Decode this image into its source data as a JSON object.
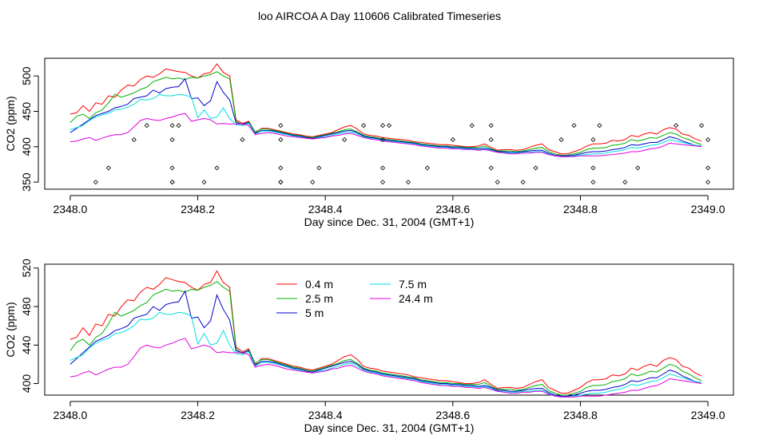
{
  "title": "loo AIRCOA A  Day 110606  Calibrated Timeseries",
  "chart_data": [
    {
      "type": "line",
      "xlabel": "Day since Dec. 31, 2004 (GMT+1)",
      "ylabel": "CO2 (ppm)",
      "xlim": [
        2347.96,
        2349.04
      ],
      "ylim": [
        340,
        525
      ],
      "xticks": [
        2348.0,
        2348.2,
        2348.4,
        2348.6,
        2348.8,
        2349.0
      ],
      "xtick_labels": [
        "2348.0",
        "2348.2",
        "2348.4",
        "2348.6",
        "2348.8",
        "2349.0"
      ],
      "yticks": [
        350,
        400,
        450,
        500
      ],
      "ytick_labels": [
        "350",
        "400",
        "450",
        "500"
      ],
      "legend": false,
      "x": [
        2348.0,
        2348.01,
        2348.02,
        2348.03,
        2348.04,
        2348.05,
        2348.06,
        2348.07,
        2348.08,
        2348.09,
        2348.1,
        2348.11,
        2348.12,
        2348.13,
        2348.14,
        2348.15,
        2348.16,
        2348.17,
        2348.18,
        2348.19,
        2348.2,
        2348.21,
        2348.22,
        2348.23,
        2348.24,
        2348.25,
        2348.26,
        2348.27,
        2348.28,
        2348.29,
        2348.3,
        2348.31,
        2348.32,
        2348.33,
        2348.34,
        2348.35,
        2348.36,
        2348.37,
        2348.38,
        2348.39,
        2348.4,
        2348.41,
        2348.42,
        2348.43,
        2348.44,
        2348.45,
        2348.46,
        2348.47,
        2348.48,
        2348.49,
        2348.5,
        2348.51,
        2348.52,
        2348.53,
        2348.54,
        2348.55,
        2348.56,
        2348.57,
        2348.58,
        2348.59,
        2348.6,
        2348.61,
        2348.62,
        2348.63,
        2348.64,
        2348.65,
        2348.66,
        2348.67,
        2348.68,
        2348.69,
        2348.7,
        2348.71,
        2348.72,
        2348.73,
        2348.74,
        2348.75,
        2348.76,
        2348.77,
        2348.78,
        2348.79,
        2348.8,
        2348.81,
        2348.82,
        2348.83,
        2348.84,
        2348.85,
        2348.86,
        2348.87,
        2348.88,
        2348.89,
        2348.9,
        2348.91,
        2348.92,
        2348.93,
        2348.94,
        2348.95,
        2348.96,
        2348.97,
        2348.98,
        2348.99
      ],
      "series": [
        {
          "color": "#ff0000",
          "values": [
            446,
            448,
            458,
            450,
            462,
            460,
            472,
            470,
            480,
            487,
            486,
            495,
            500,
            498,
            503,
            510,
            508,
            506,
            505,
            500,
            497,
            503,
            505,
            517,
            505,
            500,
            438,
            433,
            436,
            420,
            426,
            426,
            424,
            422,
            420,
            418,
            417,
            415,
            414,
            416,
            418,
            420,
            424,
            428,
            430,
            425,
            418,
            416,
            415,
            413,
            412,
            411,
            410,
            409,
            407,
            406,
            405,
            404,
            403,
            403,
            402,
            401,
            400,
            400,
            401,
            404,
            399,
            395,
            396,
            396,
            395,
            396,
            399,
            402,
            404,
            396,
            393,
            390,
            390,
            393,
            396,
            401,
            404,
            404,
            405,
            409,
            408,
            410,
            416,
            414,
            418,
            420,
            418,
            424,
            427,
            425,
            418,
            416,
            411,
            408
          ]
        },
        {
          "color": "#00b000",
          "values": [
            434,
            443,
            446,
            440,
            448,
            452,
            462,
            474,
            470,
            473,
            476,
            481,
            484,
            492,
            495,
            498,
            496,
            497,
            495,
            498,
            497,
            500,
            502,
            506,
            500,
            496,
            436,
            431,
            435,
            421,
            425,
            425,
            423,
            421,
            419,
            417,
            416,
            414,
            413,
            415,
            417,
            419,
            421,
            424,
            425,
            421,
            416,
            414,
            413,
            411,
            410,
            409,
            408,
            407,
            406,
            404,
            403,
            402,
            401,
            401,
            400,
            400,
            399,
            399,
            399,
            401,
            397,
            394,
            394,
            394,
            393,
            394,
            396,
            398,
            399,
            393,
            390,
            388,
            388,
            390,
            392,
            396,
            398,
            398,
            399,
            402,
            403,
            405,
            410,
            408,
            410,
            413,
            412,
            416,
            420,
            418,
            413,
            410,
            406,
            403
          ]
        },
        {
          "color": "#0000cc",
          "values": [
            420,
            426,
            432,
            438,
            444,
            447,
            450,
            455,
            457,
            460,
            468,
            470,
            472,
            480,
            476,
            482,
            484,
            485,
            496,
            468,
            469,
            458,
            465,
            492,
            477,
            466,
            434,
            432,
            434,
            419,
            423,
            423,
            422,
            420,
            418,
            416,
            415,
            413,
            412,
            414,
            416,
            418,
            420,
            422,
            423,
            420,
            415,
            413,
            412,
            410,
            409,
            408,
            407,
            406,
            405,
            403,
            402,
            401,
            400,
            400,
            399,
            399,
            398,
            398,
            397,
            398,
            396,
            393,
            393,
            392,
            392,
            393,
            394,
            395,
            395,
            391,
            388,
            387,
            387,
            388,
            390,
            392,
            393,
            393,
            394,
            396,
            397,
            399,
            403,
            402,
            404,
            406,
            406,
            410,
            414,
            412,
            408,
            405,
            402,
            401
          ]
        },
        {
          "color": "#00e0e0",
          "values": [
            424,
            427,
            430,
            437,
            442,
            445,
            447,
            452,
            453,
            456,
            460,
            467,
            466,
            468,
            474,
            472,
            472,
            474,
            473,
            470,
            441,
            452,
            440,
            442,
            455,
            440,
            431,
            430,
            433,
            418,
            422,
            422,
            421,
            419,
            417,
            415,
            414,
            412,
            411,
            413,
            414,
            416,
            418,
            420,
            421,
            418,
            414,
            412,
            411,
            409,
            408,
            407,
            406,
            405,
            404,
            402,
            401,
            400,
            399,
            399,
            398,
            398,
            397,
            397,
            396,
            397,
            395,
            392,
            392,
            391,
            391,
            392,
            392,
            393,
            393,
            390,
            387,
            386,
            386,
            387,
            388,
            389,
            390,
            390,
            391,
            393,
            394,
            396,
            399,
            398,
            400,
            402,
            403,
            406,
            410,
            408,
            406,
            404,
            402,
            401
          ]
        },
        {
          "color": "#e000e0",
          "values": [
            407,
            408,
            411,
            413,
            409,
            412,
            415,
            417,
            417,
            420,
            428,
            437,
            440,
            438,
            437,
            440,
            442,
            445,
            447,
            436,
            438,
            440,
            438,
            432,
            433,
            432,
            432,
            432,
            430,
            417,
            419,
            420,
            419,
            417,
            415,
            414,
            413,
            412,
            411,
            412,
            413,
            415,
            416,
            418,
            419,
            416,
            413,
            411,
            410,
            408,
            407,
            406,
            405,
            404,
            403,
            401,
            400,
            399,
            398,
            398,
            397,
            397,
            396,
            396,
            395,
            396,
            394,
            392,
            391,
            390,
            390,
            391,
            391,
            392,
            392,
            389,
            387,
            386,
            386,
            386,
            387,
            387,
            387,
            387,
            388,
            389,
            390,
            391,
            393,
            393,
            395,
            397,
            398,
            401,
            405,
            404,
            403,
            402,
            401,
            400
          ]
        }
      ],
      "points": {
        "x": [
          2348.04,
          2348.06,
          2348.1,
          2348.12,
          2348.16,
          2348.16,
          2348.16,
          2348.16,
          2348.16,
          2348.17,
          2348.21,
          2348.23,
          2348.27,
          2348.33,
          2348.33,
          2348.33,
          2348.33,
          2348.33,
          2348.38,
          2348.39,
          2348.43,
          2348.46,
          2348.49,
          2348.49,
          2348.49,
          2348.49,
          2348.5,
          2348.53,
          2348.56,
          2348.6,
          2348.63,
          2348.66,
          2348.66,
          2348.66,
          2348.67,
          2348.71,
          2348.73,
          2348.77,
          2348.79,
          2348.82,
          2348.82,
          2348.82,
          2348.83,
          2348.87,
          2348.89,
          2348.95,
          2348.99,
          2349.0,
          2349.0,
          2349.0
        ],
        "y": [
          350,
          370,
          410,
          430,
          350,
          370,
          410,
          430,
          350,
          430,
          350,
          370,
          410,
          430,
          410,
          370,
          350,
          350,
          350,
          370,
          410,
          430,
          410,
          430,
          370,
          350,
          430,
          350,
          370,
          410,
          430,
          430,
          410,
          370,
          350,
          350,
          370,
          410,
          430,
          350,
          370,
          410,
          430,
          350,
          370,
          430,
          430,
          410,
          370,
          350
        ]
      }
    },
    {
      "type": "line",
      "xlabel": "Day since Dec. 31, 2004 (GMT+1)",
      "ylabel": "CO2 (ppm)",
      "xlim": [
        2347.96,
        2349.04
      ],
      "ylim": [
        388,
        524
      ],
      "xticks": [
        2348.0,
        2348.2,
        2348.4,
        2348.6,
        2348.8,
        2349.0
      ],
      "xtick_labels": [
        "2348.0",
        "2348.2",
        "2348.4",
        "2348.6",
        "2348.8",
        "2349.0"
      ],
      "yticks": [
        400,
        440,
        480,
        520
      ],
      "ytick_labels": [
        "400",
        "440",
        "480",
        "520"
      ],
      "legend": true,
      "legend_position": "top-center",
      "x_same_as_first_chart": true,
      "series": [
        {
          "name": "0.4 m",
          "color": "#ff0000"
        },
        {
          "name": "2.5 m",
          "color": "#00b000"
        },
        {
          "name": "5 m",
          "color": "#0000cc"
        },
        {
          "name": "7.5 m",
          "color": "#00e0e0"
        },
        {
          "name": "24.4 m",
          "color": "#e000e0"
        }
      ]
    }
  ]
}
